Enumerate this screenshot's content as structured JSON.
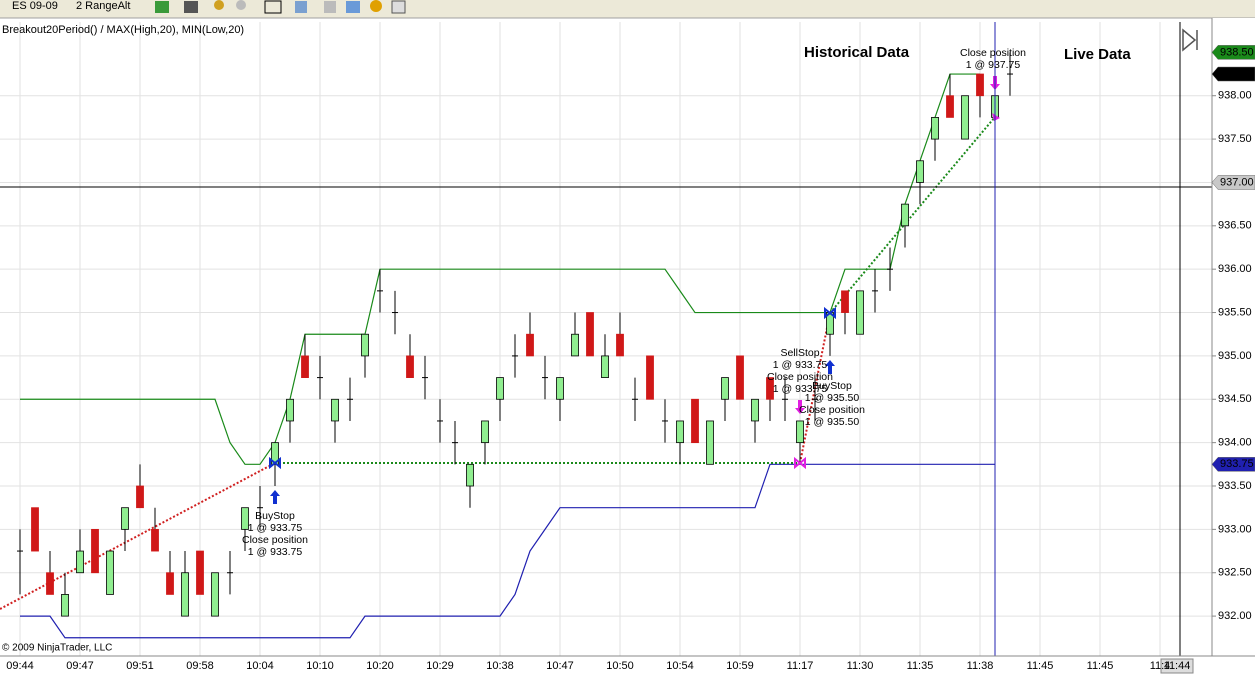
{
  "toolbar": {
    "instrument": "ES 09-09",
    "period": "2 RangeAlt"
  },
  "chart_data": {
    "type": "candlestick",
    "title": "Breakout20Period() / MAX(High,20), MIN(Low,20)",
    "region_labels": [
      "Historical Data",
      "Live Data"
    ],
    "copyright": "© 2009 NinjaTrader, LLC",
    "cursor_time": "11:44",
    "categories": [
      "09:44",
      null,
      null,
      null,
      "09:47",
      null,
      null,
      null,
      "09:51",
      null,
      null,
      null,
      "09:58",
      null,
      null,
      null,
      "10:04",
      null,
      null,
      null,
      "10:10",
      null,
      null,
      null,
      "10:20",
      null,
      null,
      null,
      "10:29",
      null,
      null,
      null,
      "10:38",
      null,
      null,
      null,
      "10:47",
      null,
      null,
      null,
      "10:50",
      null,
      null,
      null,
      "10:54",
      null,
      null,
      null,
      "10:59",
      null,
      null,
      null,
      "11:17",
      null,
      null,
      null,
      "11:30",
      null,
      null,
      null,
      "11:35",
      null,
      null,
      null,
      "11:38",
      null,
      null,
      null,
      "11:45",
      null,
      null,
      null,
      "11:45",
      null,
      null,
      null,
      "11:4"
    ],
    "open": [
      932.75,
      933.25,
      932.5,
      932,
      932.5,
      933,
      932.25,
      933,
      933.5,
      933,
      932.5,
      932,
      932.75,
      932,
      932.5,
      933,
      933.25,
      933.75,
      934.25,
      935,
      934.75,
      934.25,
      934.5,
      935,
      935.75,
      935.5,
      935,
      934.75,
      934.25,
      934,
      933.5,
      934,
      934.5,
      935,
      935.25,
      934.75,
      934.5,
      935,
      935.5,
      934.75,
      935.25,
      934.5,
      935,
      934.25,
      934,
      934.5,
      933.75,
      934.5,
      935,
      934.25,
      934.75,
      934.5,
      934,
      934.5,
      935.25,
      935.75,
      935.25,
      935.75,
      936,
      936.5,
      937,
      937.5,
      938,
      937.5,
      938.25,
      937.75,
      938.25,
      null,
      null,
      null,
      null,
      null,
      null,
      null,
      null,
      null,
      null
    ],
    "high": [
      933,
      933.25,
      932.75,
      932.5,
      933,
      933,
      932.75,
      933.25,
      933.75,
      933.25,
      932.75,
      932.75,
      932.75,
      932.5,
      932.75,
      933.25,
      933.5,
      934,
      934.5,
      935.25,
      935,
      934.5,
      934.75,
      935.25,
      936,
      935.75,
      935.25,
      935,
      934.5,
      934.25,
      933.75,
      934.25,
      934.75,
      935.25,
      935.5,
      935,
      934.75,
      935.5,
      935.5,
      935.25,
      935.5,
      934.75,
      935,
      934.5,
      934.25,
      934.5,
      934.25,
      934.75,
      935,
      934.5,
      934.75,
      934.75,
      934.25,
      934.75,
      935.5,
      935.75,
      935.75,
      936,
      936.25,
      936.75,
      937.25,
      937.75,
      938.25,
      938,
      938.25,
      938,
      938.5,
      null,
      null,
      null,
      null,
      null,
      null,
      null,
      null,
      null,
      null
    ],
    "low": [
      932.25,
      932.75,
      932.25,
      932,
      932.5,
      932.5,
      932.25,
      932.75,
      933.25,
      932.75,
      932.25,
      932,
      932.25,
      932,
      932.25,
      932.75,
      933,
      933.5,
      934,
      934.75,
      934.5,
      934,
      934.25,
      934.75,
      935.5,
      935.25,
      934.75,
      934.5,
      934,
      933.75,
      933.25,
      933.75,
      934.25,
      934.75,
      935,
      934.5,
      934.25,
      935,
      935,
      934.75,
      935,
      934.25,
      934.5,
      934,
      933.75,
      934,
      933.75,
      934.25,
      934.5,
      934,
      934.25,
      934.25,
      933.75,
      934.25,
      935,
      935.25,
      935.25,
      935.5,
      935.75,
      936.25,
      936.75,
      937.25,
      937.75,
      937.5,
      937.75,
      937.75,
      938,
      null,
      null,
      null,
      null,
      null,
      null,
      null,
      null,
      null,
      null
    ],
    "close": [
      932.75,
      932.75,
      932.25,
      932.25,
      932.75,
      932.5,
      932.75,
      933.25,
      933.25,
      932.75,
      932.25,
      932.5,
      932.25,
      932.5,
      932.5,
      933.25,
      933.25,
      934,
      934.5,
      934.75,
      934.75,
      934.5,
      934.5,
      935.25,
      935.75,
      935.5,
      934.75,
      934.75,
      934.25,
      934,
      933.75,
      934.25,
      934.75,
      935,
      935,
      934.75,
      934.75,
      935.25,
      935,
      935,
      935,
      934.5,
      934.5,
      934.25,
      934.25,
      934,
      934.25,
      934.75,
      934.5,
      934.5,
      934.5,
      934.5,
      934.25,
      934.5,
      935.5,
      935.5,
      935.75,
      935.75,
      936,
      936.75,
      937.25,
      937.75,
      937.75,
      938,
      938,
      938,
      938.25,
      null,
      null,
      null,
      null,
      null,
      null,
      null,
      null,
      null,
      null
    ],
    "up_color": "#90ee90",
    "down_color": "#d01818",
    "outline_color": "#000000",
    "series": [
      {
        "color": "#1a8a1a",
        "values": [
          934.5,
          934.5,
          934.5,
          934.5,
          934.5,
          934.5,
          934.5,
          934.5,
          934.5,
          934.5,
          934.5,
          934.5,
          934.5,
          934.5,
          934,
          933.75,
          933.75,
          934,
          934.5,
          935.25,
          935.25,
          935.25,
          935.25,
          935.25,
          936,
          936,
          936,
          936,
          936,
          936,
          936,
          936,
          936,
          936,
          936,
          936,
          936,
          936,
          936,
          936,
          936,
          936,
          936,
          936,
          935.75,
          935.5,
          935.5,
          935.5,
          935.5,
          935.5,
          935.5,
          935.5,
          935.5,
          935.5,
          935.5,
          936,
          936,
          936,
          936,
          936.75,
          937.25,
          937.75,
          938.25,
          938.25,
          938.25,
          null,
          null,
          null,
          null,
          null,
          null,
          null,
          null,
          null,
          null,
          null,
          null
        ]
      },
      {
        "color": "#2020b0",
        "values": [
          932,
          932,
          932,
          931.75,
          931.75,
          931.75,
          931.75,
          931.75,
          931.75,
          931.75,
          931.75,
          931.75,
          931.75,
          931.75,
          931.75,
          931.75,
          931.75,
          931.75,
          931.75,
          931.75,
          931.75,
          931.75,
          931.75,
          932,
          932,
          932,
          932,
          932,
          932,
          932,
          932,
          932,
          932,
          932.25,
          932.75,
          933,
          933.25,
          933.25,
          933.25,
          933.25,
          933.25,
          933.25,
          933.25,
          933.25,
          933.25,
          933.25,
          933.25,
          933.25,
          933.25,
          933.25,
          933.75,
          933.75,
          933.75,
          933.75,
          933.75,
          933.75,
          933.75,
          933.75,
          933.75,
          933.75,
          933.75,
          933.75,
          933.75,
          933.75,
          933.75,
          933.75,
          null,
          null,
          null,
          null,
          null,
          null,
          null,
          null,
          null,
          null,
          null
        ]
      }
    ],
    "ylim": [
      931.54,
      938.85
    ],
    "yticks": [
      {
        "value": 932,
        "label": "932.00"
      },
      {
        "value": 932.5,
        "label": "932.50"
      },
      {
        "value": 933,
        "label": "933.00"
      },
      {
        "value": 933.5,
        "label": "933.50"
      },
      {
        "value": 934,
        "label": "934.00"
      },
      {
        "value": 934.5,
        "label": "934.50"
      },
      {
        "value": 935,
        "label": "935.00"
      },
      {
        "value": 935.5,
        "label": "935.50"
      },
      {
        "value": 936,
        "label": "936.00"
      },
      {
        "value": 936.5,
        "label": "936.50"
      },
      {
        "value": 937,
        "label": "937.00"
      },
      {
        "value": 937.5,
        "label": "937.50"
      },
      {
        "value": 938,
        "label": "938.00"
      }
    ],
    "grid": true,
    "price_markers": [
      {
        "value": 938.5,
        "label": "938.50",
        "color": "#1a8a1a",
        "text_color": "#ffffff"
      },
      {
        "value": 938.25,
        "label": "938.25",
        "color": "#000000",
        "text_color": "#ffffff"
      },
      {
        "value": 937,
        "label": "937.00",
        "color": "#c8c8c8",
        "text_color": "#000000"
      },
      {
        "value": 933.75,
        "label": "933.75",
        "color": "#2020b0",
        "text_color": "#ffffff"
      }
    ],
    "annotations": [
      [
        "BuyStop",
        "1 @ 933.75",
        "Close position",
        "1 @ 933.75"
      ],
      [
        "SellStop",
        "1 @ 933.75",
        "Close position",
        "1 @ 933.75"
      ],
      [
        "BuyStop",
        "1 @ 935.50",
        "Close position",
        "1 @ 935.50"
      ],
      [
        "Close position",
        "1 @ 937.75"
      ]
    ]
  }
}
